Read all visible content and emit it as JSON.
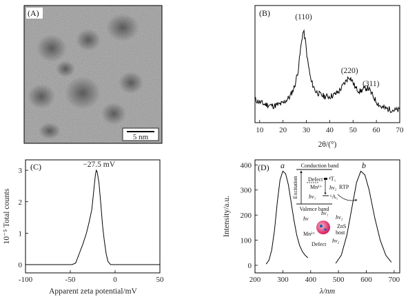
{
  "panels": {
    "a_label": "(A)",
    "b_label": "(B)",
    "c_label": "(C)",
    "d_label": "(D)"
  },
  "tem": {
    "scale_label": "5 nm"
  },
  "chart_data": [
    {
      "type": "line",
      "panel": "B",
      "xlabel": "2θ/(°)",
      "ylabel": "",
      "xlim": [
        8,
        70
      ],
      "xticks": [
        10,
        20,
        30,
        40,
        50,
        60,
        70
      ],
      "x": [
        8,
        12,
        16,
        20,
        23,
        25,
        26.5,
        27.5,
        28.3,
        28.8,
        29.5,
        30.5,
        32,
        34,
        36,
        38,
        40,
        42,
        44,
        46,
        47.5,
        48.5,
        49.5,
        51,
        53,
        55,
        56.5,
        58,
        60,
        62,
        64,
        66,
        68,
        70
      ],
      "y": [
        0.2,
        0.15,
        0.13,
        0.16,
        0.24,
        0.36,
        0.55,
        0.78,
        0.95,
        1.0,
        0.9,
        0.66,
        0.42,
        0.3,
        0.26,
        0.24,
        0.24,
        0.26,
        0.3,
        0.38,
        0.44,
        0.47,
        0.43,
        0.34,
        0.3,
        0.33,
        0.34,
        0.27,
        0.18,
        0.12,
        0.1,
        0.09,
        0.08,
        0.08
      ],
      "peak_labels": [
        {
          "x": 28.8,
          "text": "(110)"
        },
        {
          "x": 48.5,
          "text": "(220)"
        },
        {
          "x": 56.5,
          "text": "(311)"
        }
      ]
    },
    {
      "type": "line",
      "panel": "C",
      "xlabel": "Apparent zeta potential/mV",
      "ylabel": "10⁻⁵ Total counts",
      "xlim": [
        -100,
        50
      ],
      "ylim": [
        0,
        3.2
      ],
      "xticks": [
        -100,
        -50,
        0,
        50
      ],
      "yticks": [
        0,
        1,
        2,
        3
      ],
      "x": [
        -100,
        -60,
        -48,
        -44,
        -40,
        -36,
        -32,
        -29,
        -26,
        -24,
        -22,
        -21,
        -20,
        -18,
        -16,
        -14,
        -12,
        -10,
        -8,
        -5,
        0,
        50
      ],
      "y": [
        0,
        0,
        0,
        0.05,
        0.35,
        0.65,
        1.0,
        1.35,
        1.75,
        2.3,
        2.85,
        3.0,
        2.95,
        2.6,
        1.95,
        1.25,
        0.75,
        0.35,
        0.1,
        0,
        0,
        0
      ],
      "annotation": "−27.5 mV"
    },
    {
      "type": "line",
      "panel": "D",
      "xlabel": "λ/nm",
      "ylabel": "Intensity/a.u.",
      "xlim": [
        200,
        720
      ],
      "ylim": [
        0,
        420
      ],
      "xticks": [
        200,
        300,
        400,
        500,
        600,
        700
      ],
      "yticks": [
        0,
        100,
        200,
        300,
        400
      ],
      "series": [
        {
          "name": "a",
          "x": [
            240,
            250,
            260,
            270,
            280,
            290,
            300,
            310,
            320,
            330,
            340,
            350,
            360,
            370,
            380,
            390
          ],
          "y": [
            5,
            20,
            60,
            140,
            250,
            340,
            375,
            365,
            320,
            250,
            180,
            120,
            80,
            55,
            40,
            30
          ]
        },
        {
          "name": "b",
          "x": [
            490,
            510,
            530,
            550,
            565,
            580,
            595,
            610,
            630,
            650,
            670,
            690
          ],
          "y": [
            8,
            40,
            120,
            240,
            330,
            375,
            360,
            300,
            190,
            100,
            40,
            12
          ]
        }
      ],
      "inset": {
        "conduction_band": "Conduction band",
        "valence_band": "Valence band",
        "excitation": "Excitation",
        "defect": "Defect",
        "mn": "Mn²⁺",
        "t1": "⁴T₁",
        "a1": "⁶A₁",
        "hv": "hν",
        "hv1": "hν₁",
        "hv2": "hν₂",
        "rtp": "RTP",
        "zns": "ZnS",
        "host": "host"
      }
    }
  ]
}
